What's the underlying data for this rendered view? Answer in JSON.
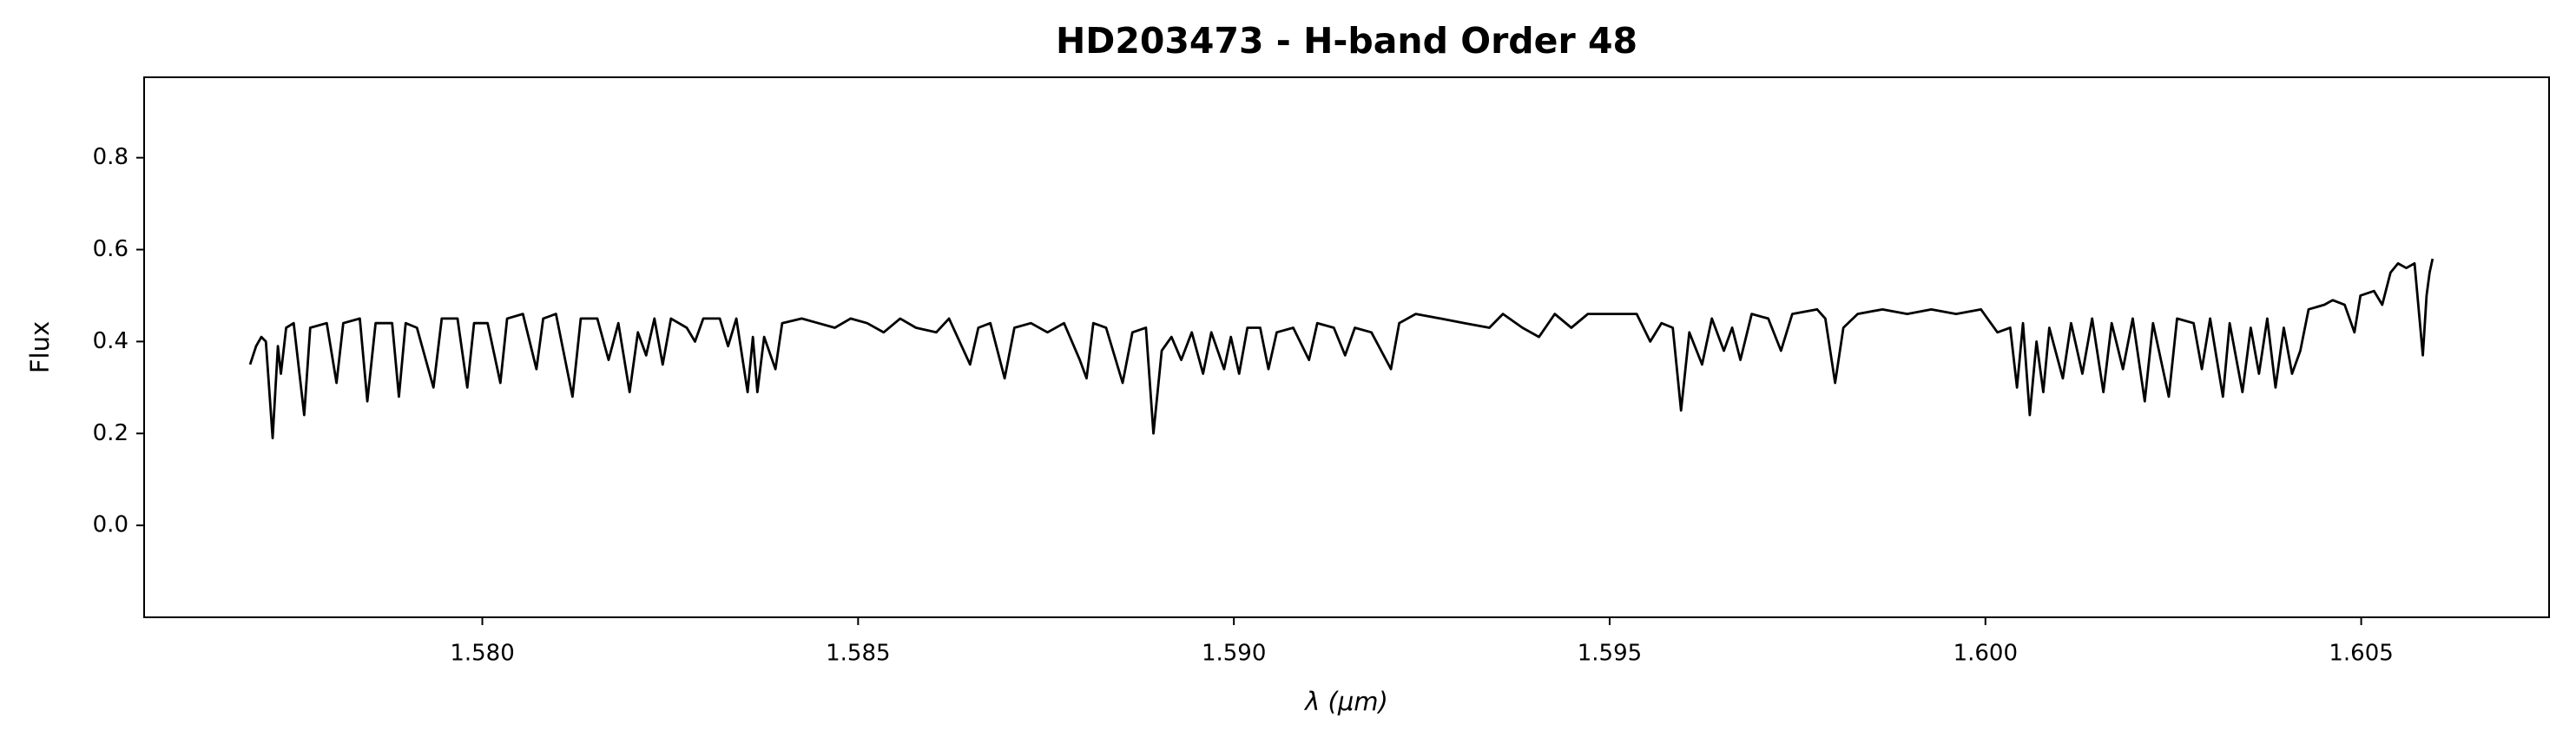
{
  "chart_data": {
    "type": "line",
    "title": "HD203473 - H-band Order 48",
    "xlabel": "λ (μm)",
    "ylabel": "Flux",
    "color": "#000000",
    "xlim": [
      1.5755,
      1.6075
    ],
    "ylim": [
      -0.2,
      0.975
    ],
    "xticks": [
      {
        "value": 1.58,
        "label": "1.580"
      },
      1.585,
      {
        "value": 1.59,
        "label": "1.590"
      },
      1.595,
      {
        "value": 1.6,
        "label": "1.600"
      },
      1.605
    ],
    "yticks": [
      {
        "value": 0,
        "label": "0.0"
      },
      0.2,
      0.4,
      0.6,
      0.8
    ],
    "x": [
      1.57691,
      1.57699,
      1.57706,
      1.57712,
      1.57721,
      1.57728,
      1.57732,
      1.57739,
      1.57749,
      1.57763,
      1.57771,
      1.57793,
      1.57806,
      1.57815,
      1.57837,
      1.57847,
      1.57858,
      1.5788,
      1.57889,
      1.57898,
      1.57913,
      1.57935,
      1.57946,
      1.57967,
      1.5798,
      1.57989,
      1.58007,
      1.58024,
      1.58033,
      1.58054,
      1.58072,
      1.58081,
      1.58098,
      1.5812,
      1.58131,
      1.58153,
      1.58168,
      1.58181,
      1.58196,
      1.58207,
      1.58218,
      1.58229,
      1.5824,
      1.58251,
      1.58272,
      1.58283,
      1.58294,
      1.58316,
      1.58327,
      1.58338,
      1.58353,
      1.5836,
      1.58366,
      1.58375,
      1.5839,
      1.58399,
      1.58425,
      1.58447,
      1.58469,
      1.5849,
      1.58512,
      1.58534,
      1.58556,
      1.58577,
      1.58604,
      1.58621,
      1.58649,
      1.5866,
      1.58676,
      1.58695,
      1.58708,
      1.5873,
      1.58752,
      1.58774,
      1.58795,
      1.58804,
      1.58813,
      1.5883,
      1.58852,
      1.58865,
      1.58883,
      1.58893,
      1.58904,
      1.58917,
      1.5893,
      1.58944,
      1.58959,
      1.5897,
      1.58987,
      1.58996,
      1.59007,
      1.59018,
      1.59035,
      1.59046,
      1.59057,
      1.59079,
      1.591,
      1.59111,
      1.59133,
      1.59148,
      1.59161,
      1.59183,
      1.59209,
      1.5922,
      1.59242,
      1.59275,
      1.59307,
      1.5934,
      1.59358,
      1.59384,
      1.59406,
      1.59427,
      1.59449,
      1.59471,
      1.59504,
      1.59536,
      1.59554,
      1.59569,
      1.59584,
      1.59595,
      1.59606,
      1.59623,
      1.59636,
      1.59652,
      1.59663,
      1.59674,
      1.59689,
      1.59711,
      1.59728,
      1.59743,
      1.59776,
      1.59787,
      1.598,
      1.59811,
      1.5983,
      1.59863,
      1.59896,
      1.59928,
      1.59961,
      1.59994,
      1.60016,
      1.60033,
      1.60042,
      1.6005,
      1.60059,
      1.60068,
      1.60077,
      1.60085,
      1.60103,
      1.60114,
      1.60129,
      1.60142,
      1.60157,
      1.60168,
      1.60183,
      1.60196,
      1.60212,
      1.60223,
      1.60244,
      1.60255,
      1.60277,
      1.60288,
      1.60299,
      1.60316,
      1.60325,
      1.60342,
      1.60353,
      1.60364,
      1.60375,
      1.60386,
      1.60397,
      1.60408,
      1.60419,
      1.6043,
      1.60451,
      1.60462,
      1.60478,
      1.60491,
      1.60499,
      1.60517,
      1.60528,
      1.60539,
      1.60549,
      1.6056,
      1.60571,
      1.60582,
      1.60587,
      1.60591,
      1.60595
    ],
    "values": [
      0.35,
      0.39,
      0.41,
      0.4,
      0.19,
      0.39,
      0.33,
      0.43,
      0.44,
      0.24,
      0.43,
      0.44,
      0.31,
      0.44,
      0.45,
      0.27,
      0.44,
      0.44,
      0.28,
      0.44,
      0.43,
      0.3,
      0.45,
      0.45,
      0.3,
      0.44,
      0.44,
      0.31,
      0.45,
      0.46,
      0.34,
      0.45,
      0.46,
      0.28,
      0.45,
      0.45,
      0.36,
      0.44,
      0.29,
      0.42,
      0.37,
      0.45,
      0.35,
      0.45,
      0.43,
      0.4,
      0.45,
      0.45,
      0.39,
      0.45,
      0.29,
      0.41,
      0.29,
      0.41,
      0.34,
      0.44,
      0.45,
      0.44,
      0.43,
      0.45,
      0.44,
      0.42,
      0.45,
      0.43,
      0.42,
      0.45,
      0.35,
      0.43,
      0.44,
      0.32,
      0.43,
      0.44,
      0.42,
      0.44,
      0.36,
      0.32,
      0.44,
      0.43,
      0.31,
      0.42,
      0.43,
      0.2,
      0.38,
      0.41,
      0.36,
      0.42,
      0.33,
      0.42,
      0.34,
      0.41,
      0.33,
      0.43,
      0.43,
      0.34,
      0.42,
      0.43,
      0.36,
      0.44,
      0.43,
      0.37,
      0.43,
      0.42,
      0.34,
      0.44,
      0.46,
      0.45,
      0.44,
      0.43,
      0.46,
      0.43,
      0.41,
      0.46,
      0.43,
      0.46,
      0.46,
      0.46,
      0.4,
      0.44,
      0.43,
      0.25,
      0.42,
      0.35,
      0.45,
      0.38,
      0.43,
      0.36,
      0.46,
      0.45,
      0.38,
      0.46,
      0.47,
      0.45,
      0.31,
      0.43,
      0.46,
      0.47,
      0.46,
      0.47,
      0.46,
      0.47,
      0.42,
      0.43,
      0.3,
      0.44,
      0.24,
      0.4,
      0.29,
      0.43,
      0.32,
      0.44,
      0.33,
      0.45,
      0.29,
      0.44,
      0.34,
      0.45,
      0.27,
      0.44,
      0.28,
      0.45,
      0.44,
      0.34,
      0.45,
      0.28,
      0.44,
      0.29,
      0.43,
      0.33,
      0.45,
      0.3,
      0.43,
      0.33,
      0.38,
      0.47,
      0.48,
      0.49,
      0.48,
      0.42,
      0.5,
      0.51,
      0.48,
      0.55,
      0.57,
      0.56,
      0.57,
      0.37,
      0.5,
      0.55,
      0.58
    ]
  }
}
